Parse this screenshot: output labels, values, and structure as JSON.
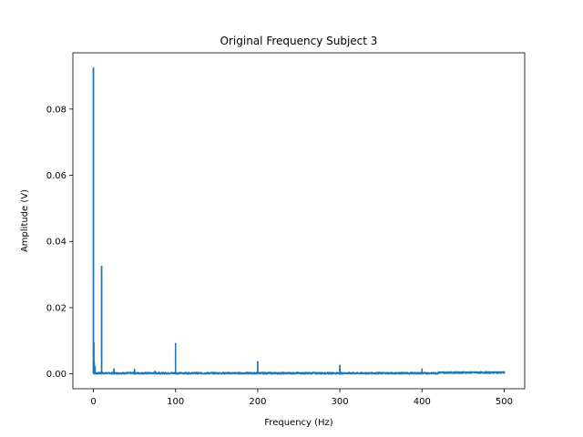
{
  "chart_data": {
    "type": "line",
    "title": "Original Frequency Subject 3",
    "xlabel": "Frequency (Hz)",
    "ylabel": "Amplitude (V)",
    "xlim": [
      -25,
      525
    ],
    "ylim": [
      -0.0045,
      0.097
    ],
    "x_ticks": [
      0,
      100,
      200,
      300,
      400,
      500
    ],
    "x_tick_labels": [
      "0",
      "100",
      "200",
      "300",
      "400",
      "500"
    ],
    "y_ticks": [
      0.0,
      0.02,
      0.04,
      0.06,
      0.08
    ],
    "y_tick_labels": [
      "0.00",
      "0.02",
      "0.04",
      "0.06",
      "0.08"
    ],
    "grid": false,
    "series": [
      {
        "color": "#1f77b4",
        "baseline": 0.0002,
        "peaks": [
          {
            "x": 0,
            "y": 0.0925
          },
          {
            "x": 0.5,
            "y": 0.0095
          },
          {
            "x": 1,
            "y": 0.0035
          },
          {
            "x": 2,
            "y": 0.0022
          },
          {
            "x": 10,
            "y": 0.0325
          },
          {
            "x": 25,
            "y": 0.0015
          },
          {
            "x": 50,
            "y": 0.0014
          },
          {
            "x": 75,
            "y": 0.0008
          },
          {
            "x": 80,
            "y": 0.0006
          },
          {
            "x": 100,
            "y": 0.0092
          },
          {
            "x": 125,
            "y": 0.0005
          },
          {
            "x": 150,
            "y": 0.0004
          },
          {
            "x": 200,
            "y": 0.0037
          },
          {
            "x": 250,
            "y": 0.0003
          },
          {
            "x": 300,
            "y": 0.0026
          },
          {
            "x": 400,
            "y": 0.0015
          },
          {
            "x": 500,
            "y": 0.0007
          }
        ]
      }
    ]
  }
}
